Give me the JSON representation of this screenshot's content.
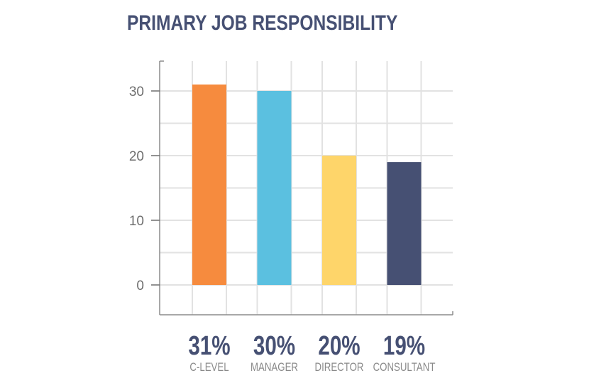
{
  "chart_data": {
    "type": "bar",
    "title": "PRIMARY JOB RESPONSIBILITY",
    "categories": [
      "C-LEVEL",
      "MANAGER",
      "DIRECTOR",
      "CONSULTANT"
    ],
    "values": [
      31,
      30,
      20,
      19
    ],
    "value_labels": [
      "31%",
      "30%",
      "20%",
      "19%"
    ],
    "colors": [
      "#f68b3e",
      "#5bc0e0",
      "#fed56a",
      "#465073"
    ],
    "yticks": [
      0,
      10,
      20,
      30
    ],
    "ylim": [
      -4.5,
      35
    ],
    "grid": true,
    "xlabel": "",
    "ylabel": ""
  }
}
